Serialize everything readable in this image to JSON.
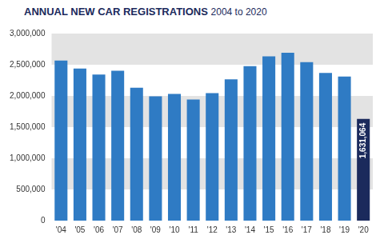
{
  "chart_data": {
    "type": "bar",
    "title": "ANNUAL NEW CAR REGISTRATIONS",
    "subtitle": "2004 to 2020",
    "categories": [
      "'04",
      "'05",
      "'06",
      "'07",
      "'08",
      "'09",
      "'10",
      "'11",
      "'12",
      "'13",
      "'14",
      "'15",
      "'16",
      "'17",
      "'18",
      "'19",
      "'20"
    ],
    "values": [
      2567000,
      2440000,
      2344000,
      2404000,
      2132000,
      1995000,
      2031000,
      1941000,
      2045000,
      2265000,
      2476000,
      2634000,
      2693000,
      2541000,
      2367000,
      2311000,
      1631064
    ],
    "colors": [
      "#2f7bc4",
      "#2f7bc4",
      "#2f7bc4",
      "#2f7bc4",
      "#2f7bc4",
      "#2f7bc4",
      "#2f7bc4",
      "#2f7bc4",
      "#2f7bc4",
      "#2f7bc4",
      "#2f7bc4",
      "#2f7bc4",
      "#2f7bc4",
      "#2f7bc4",
      "#2f7bc4",
      "#2f7bc4",
      "#1b2a5c"
    ],
    "data_labels": true,
    "value_labels": [
      null,
      null,
      null,
      null,
      null,
      null,
      null,
      null,
      null,
      null,
      null,
      null,
      null,
      null,
      null,
      null,
      "1,631,064"
    ],
    "ylim": [
      0,
      3000000
    ],
    "yticks": [
      0,
      {
        "value": 500000,
        "label": "500,000"
      },
      {
        "value": 1000000,
        "label": "1,000,000"
      },
      {
        "value": 1500000,
        "label": "1,500,000"
      },
      {
        "value": 2000000,
        "label": "2,000,000"
      },
      {
        "value": 2500000,
        "label": "2,500,000"
      },
      {
        "value": 3000000,
        "label": "3,000,000"
      }
    ],
    "grid": true
  }
}
